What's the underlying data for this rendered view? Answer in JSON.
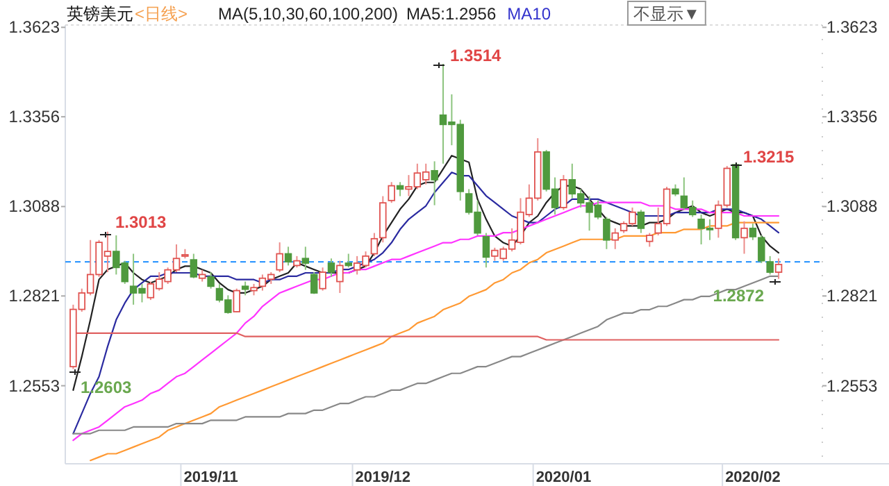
{
  "chart_data": {
    "type": "candlestick",
    "title": "英镑美元",
    "subtitle": "<日线>",
    "categories": [
      null,
      null,
      null,
      null,
      null,
      null,
      null,
      null,
      null,
      null,
      null,
      null,
      null,
      null,
      null,
      null,
      "2019/11",
      null,
      null,
      null,
      null,
      null,
      null,
      null,
      null,
      null,
      null,
      null,
      null,
      null,
      null,
      null,
      null,
      null,
      null,
      null,
      "2019/12",
      null,
      null,
      null,
      null,
      null,
      null,
      null,
      null,
      null,
      null,
      null,
      null,
      null,
      null,
      null,
      null,
      null,
      null,
      null,
      null,
      "2020/01",
      null,
      null,
      null,
      null,
      null,
      null,
      null,
      null,
      null,
      null,
      null,
      null,
      null,
      null,
      null,
      null,
      null,
      null,
      null,
      null,
      null,
      "2020/02",
      null,
      null,
      null
    ],
    "ohlc": [
      [
        1.261,
        1.2795,
        1.2603,
        1.2781
      ],
      [
        1.2781,
        1.2843,
        1.2774,
        1.283
      ],
      [
        1.283,
        1.2988,
        1.2823,
        1.2885
      ],
      [
        1.2885,
        1.2988,
        1.2878,
        1.2981
      ],
      [
        1.294,
        1.3013,
        1.2892,
        1.2954
      ],
      [
        1.2954,
        1.3002,
        1.2885,
        1.2906
      ],
      [
        1.2919,
        1.2926,
        1.2857,
        1.2864
      ],
      [
        1.285,
        1.2947,
        1.2795,
        1.283
      ],
      [
        1.2843,
        1.2857,
        1.2802,
        1.283
      ],
      [
        1.2816,
        1.2864,
        1.2809,
        1.2857
      ],
      [
        1.2843,
        1.2892,
        1.2837,
        1.2871
      ],
      [
        1.2864,
        1.2906,
        1.2857,
        1.2899
      ],
      [
        1.2899,
        1.2975,
        1.2892,
        1.2933
      ],
      [
        1.294,
        1.2961,
        1.2933,
        1.2944
      ],
      [
        1.2929,
        1.2947,
        1.2874,
        1.2878
      ],
      [
        1.2874,
        1.2899,
        1.2864,
        1.2885
      ],
      [
        1.2878,
        1.2892,
        1.2843,
        1.285
      ],
      [
        1.2843,
        1.2857,
        1.2802,
        1.2809
      ],
      [
        1.2809,
        1.2823,
        1.2768,
        1.2772
      ],
      [
        1.2774,
        1.2843,
        1.2772,
        1.2837
      ],
      [
        1.285,
        1.2864,
        1.2823,
        1.2841
      ],
      [
        1.2837,
        1.2857,
        1.2823,
        1.2846
      ],
      [
        1.285,
        1.2885,
        1.2837,
        1.2874
      ],
      [
        1.2871,
        1.2892,
        1.2857,
        1.2885
      ],
      [
        1.2899,
        1.2981,
        1.2892,
        1.2947
      ],
      [
        1.2947,
        1.2968,
        1.2912,
        1.2923
      ],
      [
        1.2912,
        1.294,
        1.2906,
        1.2926
      ],
      [
        1.2933,
        1.2968,
        1.2899,
        1.2919
      ],
      [
        1.2885,
        1.2892,
        1.2827,
        1.283
      ],
      [
        1.2843,
        1.2906,
        1.2837,
        1.2892
      ],
      [
        1.2919,
        1.2933,
        1.2878,
        1.2892
      ],
      [
        1.2864,
        1.2926,
        1.283,
        1.2912
      ],
      [
        1.2919,
        1.2947,
        1.2906,
        1.2912
      ],
      [
        1.2899,
        1.294,
        1.2885,
        1.2919
      ],
      [
        1.2912,
        1.2954,
        1.2906,
        1.294
      ],
      [
        1.2947,
        1.3009,
        1.294,
        1.2992
      ],
      [
        1.2995,
        1.3119,
        1.2981,
        1.3099
      ],
      [
        1.3106,
        1.3161,
        1.3099,
        1.315
      ],
      [
        1.315,
        1.3161,
        1.3119,
        1.314
      ],
      [
        1.314,
        1.3182,
        1.3119,
        1.3147
      ],
      [
        1.3147,
        1.3216,
        1.314,
        1.3188
      ],
      [
        1.3168,
        1.3216,
        1.3154,
        1.3191
      ],
      [
        1.3195,
        1.3223,
        1.3092,
        1.3168
      ],
      [
        1.3361,
        1.3514,
        1.3216,
        1.3333
      ],
      [
        1.334,
        1.3423,
        1.3271,
        1.3333
      ],
      [
        1.3333,
        1.3347,
        1.3106,
        1.3133
      ],
      [
        1.3126,
        1.314,
        1.3064,
        1.3071
      ],
      [
        1.3071,
        1.3106,
        1.3002,
        1.3009
      ],
      [
        1.2998,
        1.3009,
        1.2906,
        1.2937
      ],
      [
        1.294,
        1.2965,
        1.2926,
        1.2957
      ],
      [
        1.2933,
        1.2968,
        1.2926,
        1.2961
      ],
      [
        1.2961,
        1.3023,
        1.2954,
        1.2988
      ],
      [
        1.2981,
        1.3113,
        1.2975,
        1.3071
      ],
      [
        1.3064,
        1.3154,
        1.3057,
        1.3113
      ],
      [
        1.3113,
        1.3292,
        1.3106,
        1.3251
      ],
      [
        1.3251,
        1.3257,
        1.3133,
        1.314
      ],
      [
        1.314,
        1.3175,
        1.3064,
        1.3085
      ],
      [
        1.3085,
        1.3182,
        1.3078,
        1.3168
      ],
      [
        1.3168,
        1.3216,
        1.3113,
        1.3126
      ],
      [
        1.3126,
        1.314,
        1.3085,
        1.3099
      ],
      [
        1.3099,
        1.3119,
        1.3016,
        1.3071
      ],
      [
        1.3092,
        1.3106,
        1.305,
        1.3057
      ],
      [
        1.305,
        1.3057,
        1.2961,
        1.2988
      ],
      [
        1.2988,
        1.3023,
        1.2961,
        1.3009
      ],
      [
        1.3016,
        1.3044,
        1.3009,
        1.3037
      ],
      [
        1.3037,
        1.3085,
        1.303,
        1.3071
      ],
      [
        1.3071,
        1.3078,
        1.3009,
        1.3023
      ],
      [
        1.2984,
        1.3009,
        1.2968,
        1.3002
      ],
      [
        1.3009,
        1.3085,
        1.3002,
        1.3037
      ],
      [
        1.3037,
        1.3147,
        1.303,
        1.314
      ],
      [
        1.314,
        1.3154,
        1.3119,
        1.3126
      ],
      [
        1.3119,
        1.3175,
        1.3078,
        1.3085
      ],
      [
        1.3085,
        1.3106,
        1.3057,
        1.3064
      ],
      [
        1.305,
        1.3064,
        1.2975,
        1.3023
      ],
      [
        1.3023,
        1.305,
        1.2988,
        1.302
      ],
      [
        1.3023,
        1.3106,
        1.2995,
        1.3092
      ],
      [
        1.3092,
        1.3209,
        1.3085,
        1.3202
      ],
      [
        1.3213,
        1.3215,
        1.2988,
        1.2995
      ],
      [
        1.2995,
        1.3044,
        1.2947,
        1.3023
      ],
      [
        1.3023,
        1.3037,
        1.2988,
        1.2998
      ],
      [
        1.2995,
        1.3002,
        1.2919,
        1.2926
      ],
      [
        1.2923,
        1.294,
        1.2885,
        1.2892
      ],
      [
        1.2892,
        1.2933,
        1.2872,
        1.2915
      ]
    ],
    "series": [
      {
        "type": "line",
        "color": "#222222",
        "values": [
          1.254,
          1.264,
          1.275,
          1.287,
          1.29,
          1.291,
          1.292,
          1.289,
          1.287,
          1.286,
          1.287,
          1.288,
          1.29,
          1.291,
          1.291,
          1.29,
          1.289,
          1.286,
          1.284,
          1.283,
          1.283,
          1.284,
          1.285,
          1.287,
          1.288,
          1.289,
          1.292,
          1.291,
          1.29,
          1.289,
          1.289,
          1.289,
          1.289,
          1.29,
          1.291,
          1.295,
          1.3,
          1.304,
          1.308,
          1.311,
          1.315,
          1.316,
          1.316,
          1.32,
          1.324,
          1.323,
          1.322,
          1.311,
          1.305,
          1.3,
          1.298,
          1.297,
          1.3,
          1.304,
          1.306,
          1.31,
          1.313,
          1.315,
          1.315,
          1.314,
          1.311,
          1.308,
          1.305,
          1.304,
          1.303,
          1.303,
          1.303,
          1.304,
          1.304,
          1.305,
          1.307,
          1.308,
          1.309,
          1.307,
          1.306,
          1.307,
          1.308,
          1.307,
          1.307,
          1.306,
          1.3,
          1.297,
          1.295
        ]
      },
      {
        "type": "line",
        "color": "#2a2aa0",
        "values": [
          1.241,
          1.247,
          1.253,
          1.258,
          1.267,
          1.275,
          1.28,
          1.284,
          1.286,
          1.288,
          1.288,
          1.289,
          1.289,
          1.289,
          1.289,
          1.288,
          1.288,
          1.288,
          1.288,
          1.287,
          1.287,
          1.287,
          1.286,
          1.287,
          1.287,
          1.288,
          1.288,
          1.289,
          1.289,
          1.289,
          1.289,
          1.29,
          1.29,
          1.291,
          1.292,
          1.293,
          1.295,
          1.298,
          1.302,
          1.305,
          1.307,
          1.309,
          1.313,
          1.316,
          1.319,
          1.318,
          1.318,
          1.315,
          1.312,
          1.31,
          1.308,
          1.306,
          1.305,
          1.304,
          1.304,
          1.306,
          1.308,
          1.309,
          1.311,
          1.311,
          1.311,
          1.311,
          1.31,
          1.309,
          1.308,
          1.307,
          1.306,
          1.306,
          1.306,
          1.306,
          1.307,
          1.307,
          1.307,
          1.307,
          1.307,
          1.308,
          1.308,
          1.308,
          1.307,
          1.306,
          1.305,
          1.303,
          1.301
        ]
      },
      {
        "type": "line",
        "color": "#ff33ff",
        "values": [
          1.239,
          1.241,
          1.242,
          1.243,
          1.245,
          1.247,
          1.249,
          1.25,
          1.251,
          1.253,
          1.254,
          1.256,
          1.258,
          1.259,
          1.261,
          1.263,
          1.265,
          1.267,
          1.269,
          1.271,
          1.274,
          1.276,
          1.279,
          1.281,
          1.283,
          1.284,
          1.285,
          1.286,
          1.287,
          1.287,
          1.288,
          1.289,
          1.289,
          1.29,
          1.29,
          1.291,
          1.292,
          1.293,
          1.293,
          1.294,
          1.295,
          1.296,
          1.297,
          1.298,
          1.298,
          1.299,
          1.299,
          1.3,
          1.3,
          1.3,
          1.301,
          1.301,
          1.302,
          1.303,
          1.304,
          1.305,
          1.306,
          1.307,
          1.308,
          1.309,
          1.309,
          1.31,
          1.31,
          1.31,
          1.31,
          1.31,
          1.31,
          1.309,
          1.309,
          1.309,
          1.308,
          1.308,
          1.308,
          1.308,
          1.307,
          1.307,
          1.307,
          1.307,
          1.306,
          1.306,
          1.306,
          1.306,
          1.306
        ]
      },
      {
        "type": "line",
        "color": "#ff9933",
        "values": [
          null,
          null,
          1.233,
          1.234,
          1.235,
          1.235,
          1.236,
          1.237,
          1.238,
          1.239,
          1.24,
          1.242,
          1.243,
          1.244,
          1.245,
          1.246,
          1.247,
          1.249,
          1.25,
          1.251,
          1.252,
          1.253,
          1.254,
          1.255,
          1.256,
          1.257,
          1.258,
          1.259,
          1.26,
          1.261,
          1.262,
          1.263,
          1.264,
          1.265,
          1.266,
          1.267,
          1.268,
          1.27,
          1.271,
          1.272,
          1.274,
          1.275,
          1.276,
          1.278,
          1.279,
          1.28,
          1.282,
          1.283,
          1.284,
          1.286,
          1.287,
          1.289,
          1.29,
          1.292,
          1.293,
          1.295,
          1.296,
          1.297,
          1.298,
          1.299,
          1.299,
          1.299,
          1.299,
          1.299,
          1.3,
          1.3,
          1.3,
          1.3,
          1.301,
          1.301,
          1.301,
          1.302,
          1.302,
          1.302,
          1.303,
          1.303,
          1.303,
          1.304,
          1.304,
          1.304,
          1.304,
          1.304,
          1.304
        ]
      },
      {
        "type": "line",
        "color": "#888888",
        "values": [
          1.241,
          1.241,
          1.241,
          1.242,
          1.242,
          1.242,
          1.242,
          1.243,
          1.243,
          1.243,
          1.243,
          1.243,
          1.244,
          1.244,
          1.244,
          1.244,
          1.245,
          1.245,
          1.245,
          1.245,
          1.246,
          1.246,
          1.246,
          1.246,
          1.246,
          1.247,
          1.247,
          1.247,
          1.248,
          1.248,
          1.249,
          1.25,
          1.25,
          1.251,
          1.252,
          1.252,
          1.253,
          1.254,
          1.254,
          1.255,
          1.256,
          1.256,
          1.257,
          1.258,
          1.259,
          1.259,
          1.26,
          1.261,
          1.261,
          1.262,
          1.263,
          1.264,
          1.264,
          1.265,
          1.266,
          1.267,
          1.268,
          1.269,
          1.27,
          1.271,
          1.272,
          1.273,
          1.275,
          1.276,
          1.277,
          1.277,
          1.278,
          1.278,
          1.279,
          1.279,
          1.28,
          1.281,
          1.281,
          1.282,
          1.282,
          1.283,
          1.284,
          1.284,
          1.285,
          1.286,
          1.287,
          1.288,
          1.288
        ]
      },
      {
        "type": "line",
        "color": "#e06060",
        "values": [
          1.271,
          1.271,
          1.271,
          1.271,
          1.271,
          1.271,
          1.271,
          1.271,
          1.271,
          1.271,
          1.271,
          1.271,
          1.271,
          1.271,
          1.271,
          1.271,
          1.271,
          1.271,
          1.271,
          1.271,
          1.27,
          1.27,
          1.27,
          1.27,
          1.27,
          1.27,
          1.27,
          1.27,
          1.27,
          1.27,
          1.27,
          1.27,
          1.27,
          1.27,
          1.27,
          1.27,
          1.27,
          1.27,
          1.27,
          1.27,
          1.27,
          1.27,
          1.27,
          1.27,
          1.27,
          1.27,
          1.27,
          1.27,
          1.27,
          1.27,
          1.27,
          1.27,
          1.27,
          1.27,
          1.27,
          1.269,
          1.269,
          1.269,
          1.269,
          1.269,
          1.269,
          1.269,
          1.269,
          1.269,
          1.269,
          1.269,
          1.269,
          1.269,
          1.269,
          1.269,
          1.269,
          1.269,
          1.269,
          1.269,
          1.269,
          1.269,
          1.269,
          1.269,
          1.269,
          1.269,
          1.269,
          1.269,
          1.269
        ]
      }
    ],
    "ylim": [
      1.232,
      1.363
    ],
    "yticks": [
      1.2553,
      1.2821,
      1.3088,
      1.3356,
      1.3623
    ],
    "y2lim": [
      1.232,
      1.363
    ],
    "y2ticks": [
      1.2553,
      1.2821,
      1.3088,
      1.3356,
      1.3623
    ],
    "ref_lines": [
      {
        "axis": "y",
        "value": 1.2923,
        "color": "#3399ff",
        "line_style": "dashed"
      }
    ],
    "annotations": [
      "MA(5,10,30,60,100,200)",
      "MA5:1.2956",
      "MA10",
      "不显示▼",
      "1.3013",
      "1.3514",
      "1.3215",
      "1.2603",
      "1.2872"
    ]
  }
}
